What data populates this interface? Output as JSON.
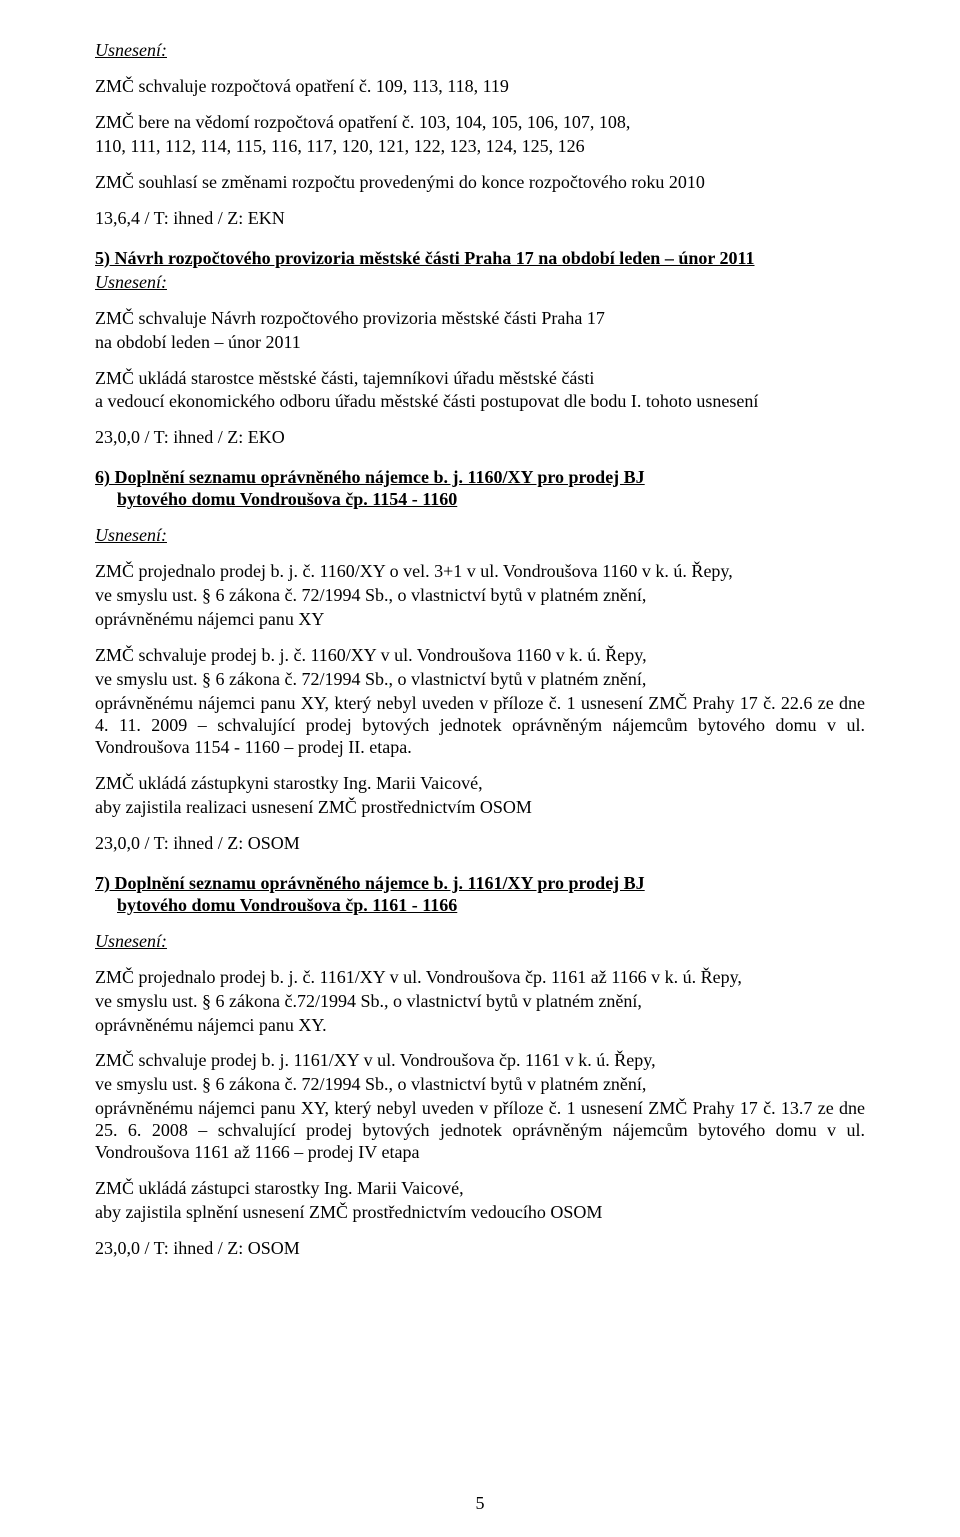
{
  "usneseni_label": "Usnesení:",
  "top": {
    "line1": "ZMČ schvaluje rozpočtová opatření č. 109, 113, 118, 119",
    "line2": "ZMČ bere na vědomí rozpočtová opatření č. 103, 104, 105, 106, 107, 108,",
    "line3": "110, 111, 112, 114, 115, 116, 117, 120, 121, 122, 123, 124, 125, 126",
    "line4": "ZMČ souhlasí se změnami rozpočtu provedenými do konce rozpočtového roku 2010",
    "vote": "13,6,4 / T: ihned / Z: EKN"
  },
  "s5": {
    "title": "5) Návrh rozpočtového provizoria městské části Praha 17 na období leden – únor 2011",
    "p1a": "ZMČ schvaluje Návrh rozpočtového provizoria městské části Praha 17",
    "p1b": "na období leden – únor 2011",
    "p2a": "ZMČ ukládá starostce městské části, tajemníkovi úřadu městské části",
    "p2b": "a vedoucí ekonomického odboru úřadu městské části postupovat dle bodu I. tohoto usnesení",
    "vote": "23,0,0 / T: ihned / Z: EKO"
  },
  "s6": {
    "title": "6) Doplnění seznamu oprávněného nájemce b. j. 1160/XY pro prodej BJ",
    "sub": "bytového domu Vondroušova čp. 1154 - 1160",
    "p1a": "ZMČ projednalo prodej  b. j. č. 1160/XY o vel. 3+1 v ul. Vondroušova 1160 v k. ú. Řepy,",
    "p1b": "ve smyslu ust. § 6 zákona č. 72/1994 Sb., o vlastnictví bytů v platném znění,",
    "p1c": "oprávněnému nájemci panu XY",
    "p2a": "ZMČ schvaluje prodej b. j. č. 1160/XY v ul. Vondroušova 1160 v k. ú. Řepy,",
    "p2b": "ve smyslu ust. § 6 zákona č. 72/1994 Sb., o vlastnictví bytů v platném znění,",
    "p2c": "oprávněnému nájemci panu XY, který nebyl uveden v příloze č. 1 usnesení ZMČ Prahy 17 č. 22.6 ze dne 4. 11. 2009 – schvalující prodej bytových jednotek oprávněným nájemcům bytového domu v ul. Vondroušova 1154 - 1160 – prodej II. etapa.",
    "p3a": "ZMČ ukládá zástupkyni starostky Ing. Marii Vaicové,",
    "p3b": "aby zajistila realizaci usnesení ZMČ prostřednictvím OSOM",
    "vote": "23,0,0 / T: ihned / Z: OSOM"
  },
  "s7": {
    "title": "7) Doplnění seznamu oprávněného nájemce b. j. 1161/XY pro prodej BJ",
    "sub": "bytového domu Vondroušova čp. 1161 - 1166",
    "p1a": "ZMČ projednalo prodej b. j. č. 1161/XY v ul. Vondroušova čp. 1161 až 1166 v k. ú. Řepy,",
    "p1b": "ve smyslu ust. § 6 zákona č.72/1994 Sb., o vlastnictví bytů v platném znění,",
    "p1c": "oprávněnému nájemci panu XY.",
    "p2a": "ZMČ schvaluje prodej b. j. 1161/XY v ul. Vondroušova čp. 1161 v k. ú. Řepy,",
    "p2b": "ve smyslu ust. § 6 zákona č. 72/1994 Sb., o vlastnictví bytů v platném znění,",
    "p2c": "oprávněnému nájemci panu XY, který nebyl uveden v příloze č. 1 usnesení ZMČ Prahy 17 č. 13.7 ze dne 25. 6. 2008 – schvalující prodej bytových jednotek oprávněným nájemcům bytového domu v ul. Vondroušova 1161 až 1166 – prodej IV etapa",
    "p3a": "ZMČ ukládá zástupci starostky Ing. Marii Vaicové,",
    "p3b": "aby zajistila splnění usnesení ZMČ prostřednictvím vedoucího OSOM",
    "vote": "23,0,0 / T: ihned / Z: OSOM"
  },
  "page_number": "5"
}
